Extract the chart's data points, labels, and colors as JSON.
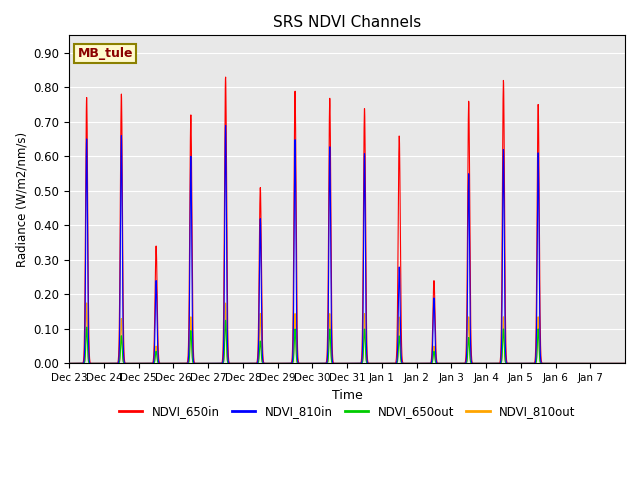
{
  "title": "SRS NDVI Channels",
  "xlabel": "Time",
  "ylabel": "Radiance (W/m2/nm/s)",
  "ylim": [
    0.0,
    0.95
  ],
  "yticks": [
    0.0,
    0.1,
    0.2,
    0.3,
    0.4,
    0.5,
    0.6,
    0.7,
    0.8,
    0.9
  ],
  "annotation_text": "MB_tule",
  "annotation_color": "#8B0000",
  "annotation_bg": "#FFFACD",
  "annotation_border": "#8B8000",
  "colors": {
    "NDVI_650in": "#FF0000",
    "NDVI_810in": "#0000FF",
    "NDVI_650out": "#00CC00",
    "NDVI_810out": "#FFA500"
  },
  "legend_labels": [
    "NDVI_650in",
    "NDVI_810in",
    "NDVI_650out",
    "NDVI_810out"
  ],
  "tick_labels": [
    "Dec 23",
    "Dec 24",
    "Dec 25",
    "Dec 26",
    "Dec 27",
    "Dec 28",
    "Dec 29",
    "Dec 30",
    "Dec 31",
    "Jan 1",
    "Jan 2",
    "Jan 3",
    "Jan 4",
    "Jan 5",
    "Jan 6",
    "Jan 7"
  ],
  "day_peaks_650in": [
    0.77,
    0.78,
    0.34,
    0.72,
    0.83,
    0.51,
    0.79,
    0.77,
    0.74,
    0.66,
    0.24,
    0.76,
    0.82,
    0.75,
    0.0,
    0.0
  ],
  "day_peaks_810in": [
    0.65,
    0.66,
    0.24,
    0.6,
    0.69,
    0.42,
    0.65,
    0.63,
    0.61,
    0.28,
    0.19,
    0.55,
    0.62,
    0.61,
    0.0,
    0.0
  ],
  "day_peaks_650out": [
    0.105,
    0.08,
    0.035,
    0.095,
    0.125,
    0.065,
    0.1,
    0.1,
    0.1,
    0.08,
    0.035,
    0.075,
    0.1,
    0.1,
    0.0,
    0.0
  ],
  "day_peaks_810out": [
    0.175,
    0.13,
    0.05,
    0.135,
    0.175,
    0.145,
    0.145,
    0.145,
    0.145,
    0.135,
    0.05,
    0.135,
    0.135,
    0.135,
    0.0,
    0.0
  ],
  "sigma_650in": 0.03,
  "sigma_810in": 0.025,
  "sigma_650out": 0.022,
  "sigma_810out": 0.022,
  "background_color": "#E8E8E8",
  "fig_bg": "#FFFFFF",
  "linewidth": 0.8,
  "n_days": 16,
  "pts_per_day": 200
}
